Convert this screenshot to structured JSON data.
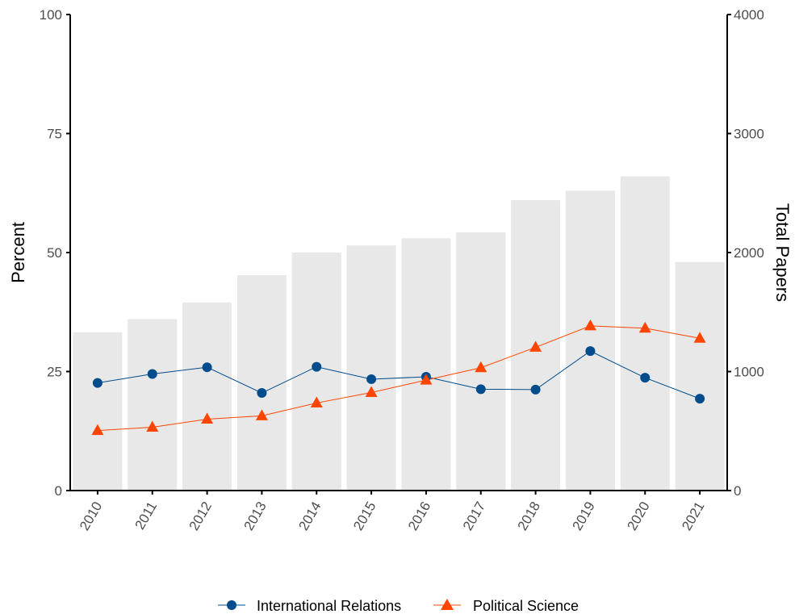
{
  "chart_data": {
    "type": "bar",
    "categories": [
      "2010",
      "2011",
      "2012",
      "2013",
      "2014",
      "2015",
      "2016",
      "2017",
      "2018",
      "2019",
      "2020",
      "2021"
    ],
    "bars": {
      "axis": "right",
      "values": [
        1330,
        1440,
        1580,
        1810,
        2000,
        2060,
        2120,
        2170,
        2440,
        2520,
        2640,
        1920
      ],
      "color": "#e8e8e8"
    },
    "series": [
      {
        "name": "International Relations",
        "type": "line",
        "marker": "circle",
        "color": "#004c8c",
        "values": [
          22.6,
          24.5,
          25.9,
          20.5,
          26.0,
          23.4,
          23.9,
          21.3,
          21.2,
          29.3,
          23.7,
          19.3
        ]
      },
      {
        "name": "Political Science",
        "type": "line",
        "marker": "triangle",
        "color": "#ff4500",
        "values": [
          12.6,
          13.3,
          15.0,
          15.7,
          18.4,
          20.6,
          23.2,
          25.8,
          30.1,
          34.6,
          34.1,
          32.0
        ]
      }
    ],
    "ylabel": "Percent",
    "ylim": [
      0,
      100
    ],
    "yticks": [
      0,
      25,
      50,
      75,
      100
    ],
    "y2label": "Total Papers",
    "y2lim": [
      0,
      4000
    ],
    "y2ticks": [
      0,
      1000,
      2000,
      3000,
      4000
    ],
    "grid": false,
    "legend_position": "bottom"
  }
}
